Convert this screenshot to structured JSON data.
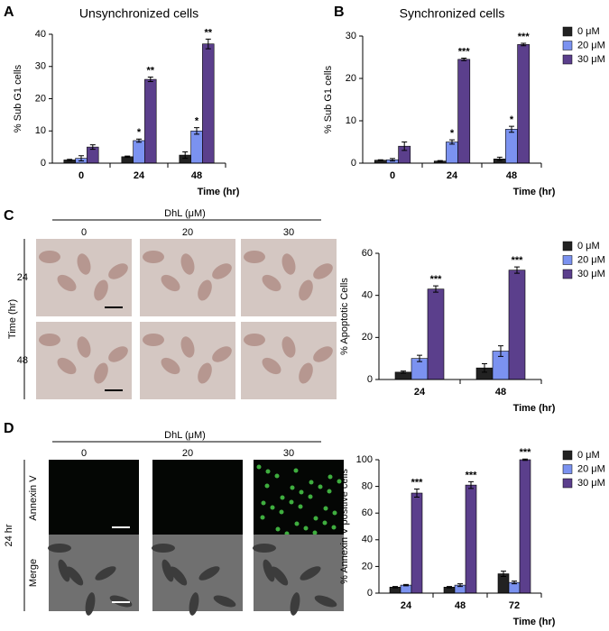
{
  "chart_data": [
    {
      "type": "bar",
      "panel": "A",
      "title": "Unsynchronized cells",
      "x_label": "Time (hr)",
      "y_label": "% Sub G1 cells",
      "categories": [
        "0",
        "24",
        "48"
      ],
      "ylim": [
        0,
        40
      ],
      "yticks": [
        0,
        10,
        20,
        30,
        40
      ],
      "series": [
        {
          "color": "#222222",
          "values": [
            1,
            2,
            2.5
          ],
          "errors": [
            0.2,
            0.2,
            1
          ]
        },
        {
          "color": "#7b92f0",
          "values": [
            1.5,
            7,
            10
          ],
          "errors": [
            0.8,
            0.5,
            1
          ],
          "labels": [
            null,
            "*",
            "*"
          ]
        },
        {
          "color": "#5b3f8c",
          "values": [
            5,
            26,
            37
          ],
          "errors": [
            0.7,
            0.7,
            1.5
          ],
          "labels": [
            null,
            "**",
            "**"
          ]
        }
      ]
    },
    {
      "type": "bar",
      "panel": "B",
      "title": "Synchronized cells",
      "x_label": "Time (hr)",
      "y_label": "% Sub G1 cells",
      "categories": [
        "0",
        "24",
        "48"
      ],
      "ylim": [
        0,
        30
      ],
      "yticks": [
        0,
        10,
        20,
        30
      ],
      "legend": "right",
      "series": [
        {
          "name": "0 μM",
          "color": "#222222",
          "values": [
            0.7,
            0.5,
            1
          ],
          "errors": [
            0.1,
            0.1,
            0.4
          ]
        },
        {
          "name": "20 μM",
          "color": "#7b92f0",
          "values": [
            0.8,
            5,
            8
          ],
          "errors": [
            0.3,
            0.5,
            0.7
          ],
          "labels": [
            null,
            "*",
            "*"
          ]
        },
        {
          "name": "30 μM",
          "color": "#5b3f8c",
          "values": [
            4,
            24.5,
            28
          ],
          "errors": [
            1,
            0.3,
            0.3
          ],
          "labels": [
            null,
            "***",
            "***"
          ]
        }
      ]
    },
    {
      "type": "bar",
      "x_label": "Time (hr)",
      "y_label": "% Apoptotic Cells",
      "categories": [
        "24",
        "48"
      ],
      "ylim": [
        0,
        60
      ],
      "yticks": [
        0,
        20,
        40,
        60
      ],
      "legend": "right",
      "series": [
        {
          "name": "0 μM",
          "color": "#222222",
          "values": [
            3.5,
            5.5
          ],
          "errors": [
            0.5,
            2
          ]
        },
        {
          "name": "20 μM",
          "color": "#7b92f0",
          "values": [
            10,
            13.5
          ],
          "errors": [
            1.5,
            2.5
          ]
        },
        {
          "name": "30 μM",
          "color": "#5b3f8c",
          "values": [
            43,
            52
          ],
          "errors": [
            1.5,
            1.5
          ],
          "labels": [
            "***",
            "***"
          ]
        }
      ]
    },
    {
      "type": "bar",
      "x_label": "Time (hr)",
      "y_label": "% Annexin V positive cells",
      "categories": [
        "24",
        "48",
        "72"
      ],
      "ylim": [
        0,
        100
      ],
      "yticks": [
        0,
        20,
        40,
        60,
        80,
        100
      ],
      "legend": "right",
      "series": [
        {
          "name": "0 μM",
          "color": "#222222",
          "values": [
            4.5,
            4.5,
            14.5
          ],
          "errors": [
            0.5,
            0.5,
            2
          ]
        },
        {
          "name": "20 μM",
          "color": "#7b92f0",
          "values": [
            6,
            6,
            8
          ],
          "errors": [
            0.5,
            1,
            1
          ]
        },
        {
          "name": "30 μM",
          "color": "#5b3f8c",
          "values": [
            75,
            81,
            100
          ],
          "errors": [
            3,
            2.5,
            0.5
          ],
          "labels": [
            "***",
            "***",
            "***"
          ]
        }
      ]
    }
  ],
  "image_panels": [
    {
      "panel": "C",
      "header": "DhL (μM)",
      "columns": [
        "0",
        "20",
        "30"
      ],
      "row_title": "Time (hr)",
      "rows": [
        "24",
        "48"
      ]
    },
    {
      "panel": "D",
      "header": "DhL (μM)",
      "columns": [
        "0",
        "20",
        "30"
      ],
      "row_title": "24 hr",
      "rows": [
        "Annexin V",
        "Merge"
      ]
    }
  ]
}
